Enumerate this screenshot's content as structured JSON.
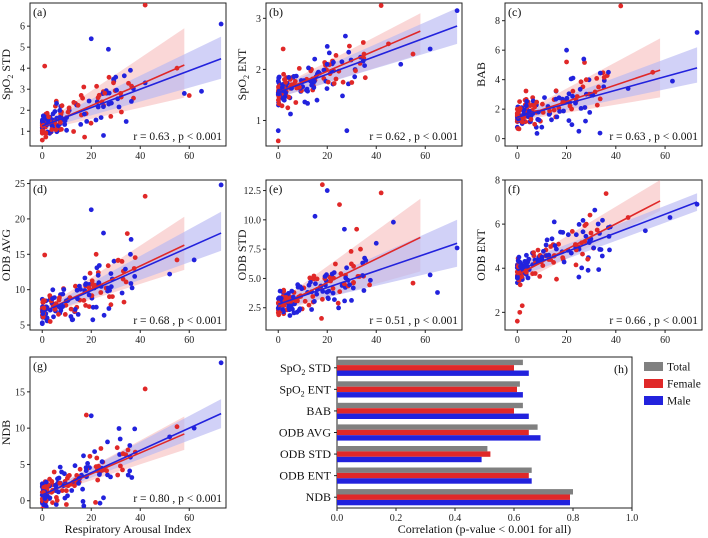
{
  "colors": {
    "male": "#2222dd",
    "female": "#e02828",
    "total": "#808080",
    "male_band": "#b8b8f2",
    "female_band": "#f7c2c2"
  },
  "xlabel_main": "Respiratory Arousal Index",
  "chart_data": [
    {
      "type": "scatter",
      "panel": "(a)",
      "ylabel": "SpO",
      "ylabel_sub": "2",
      "ylabel_rest": " STD",
      "xlim": [
        -5,
        75
      ],
      "ylim": [
        0.3,
        7.1
      ],
      "xticks": [
        0,
        20,
        40,
        60
      ],
      "yticks": [
        1,
        2,
        3,
        4,
        5,
        6
      ],
      "annotation": "r = 0.63 , p < 0.001",
      "fit_female": {
        "x": [
          0,
          58
        ],
        "y": [
          1.2,
          4.15
        ],
        "band_lo": [
          1.05,
          2.6
        ],
        "band_hi": [
          1.35,
          5.9
        ]
      },
      "fit_male": {
        "x": [
          0,
          73
        ],
        "y": [
          1.25,
          4.45
        ],
        "band_lo": [
          1.1,
          3.5
        ],
        "band_hi": [
          1.4,
          5.5
        ]
      },
      "outliers_female": [
        [
          42,
          7.0
        ],
        [
          32,
          2.8
        ],
        [
          1,
          4.1
        ],
        [
          55,
          4.0
        ],
        [
          60,
          2.7
        ]
      ],
      "outliers_male": [
        [
          73,
          6.1
        ],
        [
          20,
          5.4
        ],
        [
          27,
          4.9
        ],
        [
          36,
          3.9
        ],
        [
          42,
          3.3
        ],
        [
          58,
          2.8
        ],
        [
          65,
          2.9
        ],
        [
          25,
          0.8
        ]
      ]
    },
    {
      "type": "scatter",
      "panel": "(b)",
      "ylabel": "SpO",
      "ylabel_sub": "2",
      "ylabel_rest": " ENT",
      "xlim": [
        -5,
        75
      ],
      "ylim": [
        0.5,
        3.3
      ],
      "xticks": [
        0,
        20,
        40,
        60
      ],
      "yticks": [
        1,
        2,
        3
      ],
      "annotation": "r = 0.62 , p < 0.001",
      "fit_female": {
        "x": [
          0,
          58
        ],
        "y": [
          1.55,
          2.75
        ],
        "band_lo": [
          1.45,
          2.3
        ],
        "band_hi": [
          1.65,
          3.1
        ]
      },
      "fit_male": {
        "x": [
          0,
          73
        ],
        "y": [
          1.55,
          2.85
        ],
        "band_lo": [
          1.45,
          2.5
        ],
        "band_hi": [
          1.65,
          3.2
        ]
      },
      "outliers_female": [
        [
          42,
          3.25
        ],
        [
          0,
          0.6
        ],
        [
          2,
          2.4
        ],
        [
          35,
          2.3
        ],
        [
          55,
          2.3
        ],
        [
          45,
          2.5
        ]
      ],
      "outliers_male": [
        [
          73,
          3.15
        ],
        [
          0,
          0.8
        ],
        [
          28,
          0.8
        ],
        [
          62,
          2.4
        ],
        [
          50,
          2.1
        ],
        [
          20,
          2.45
        ]
      ]
    },
    {
      "type": "scatter",
      "panel": "(c)",
      "ylabel": "BAB",
      "ylabel_sub": "",
      "ylabel_rest": "",
      "xlim": [
        -5,
        75
      ],
      "ylim": [
        -0.5,
        9.2
      ],
      "xticks": [
        0,
        20,
        40,
        60
      ],
      "yticks": [
        0,
        2,
        4,
        6,
        8
      ],
      "annotation": "r = 0.63 , p < 0.001",
      "fit_female": {
        "x": [
          0,
          58
        ],
        "y": [
          1.4,
          4.65
        ],
        "band_lo": [
          1.2,
          2.8
        ],
        "band_hi": [
          1.6,
          6.8
        ]
      },
      "fit_male": {
        "x": [
          0,
          73
        ],
        "y": [
          1.45,
          4.8
        ],
        "band_lo": [
          1.25,
          3.8
        ],
        "band_hi": [
          1.65,
          6.2
        ]
      },
      "outliers_female": [
        [
          42,
          9.0
        ],
        [
          20,
          5.2
        ],
        [
          28,
          4.0
        ],
        [
          33,
          3.5
        ],
        [
          55,
          4.5
        ]
      ],
      "outliers_male": [
        [
          73,
          7.2
        ],
        [
          20,
          6.0
        ],
        [
          27,
          5.4
        ],
        [
          37,
          4.5
        ],
        [
          45,
          3.4
        ],
        [
          63,
          3.9
        ],
        [
          25,
          0.5
        ]
      ]
    },
    {
      "type": "scatter",
      "panel": "(d)",
      "ylabel": "ODB AVG",
      "ylabel_sub": "",
      "ylabel_rest": "",
      "xlim": [
        -5,
        75
      ],
      "ylim": [
        4.3,
        25.5
      ],
      "xticks": [
        0,
        20,
        40,
        60
      ],
      "yticks": [
        5,
        10,
        15,
        20,
        25
      ],
      "annotation": "r = 0.68 , p < 0.001",
      "fit_female": {
        "x": [
          0,
          58
        ],
        "y": [
          6.8,
          16.3
        ],
        "band_lo": [
          6.4,
          12.8
        ],
        "band_hi": [
          7.2,
          20.3
        ]
      },
      "fit_male": {
        "x": [
          0,
          73
        ],
        "y": [
          6.8,
          18.0
        ],
        "band_lo": [
          6.4,
          15.5
        ],
        "band_hi": [
          7.2,
          21.0
        ]
      },
      "outliers_female": [
        [
          42,
          23.2
        ],
        [
          1,
          14.9
        ],
        [
          33,
          11.5
        ],
        [
          55,
          14.2
        ],
        [
          22,
          15.0
        ]
      ],
      "outliers_male": [
        [
          73,
          24.8
        ],
        [
          20,
          21.3
        ],
        [
          25,
          18.0
        ],
        [
          36,
          15.0
        ],
        [
          62,
          14.2
        ],
        [
          52,
          12.2
        ]
      ]
    },
    {
      "type": "scatter",
      "panel": "(e)",
      "ylabel": "ODB STD",
      "ylabel_sub": "",
      "ylabel_rest": "",
      "xlim": [
        -5,
        75
      ],
      "ylim": [
        0.6,
        13.4
      ],
      "xticks": [
        0,
        20,
        40,
        60
      ],
      "yticks": [
        2.5,
        5.0,
        7.5,
        10.0,
        12.5
      ],
      "annotation": "r = 0.51 , p < 0.001",
      "fit_female": {
        "x": [
          0,
          58
        ],
        "y": [
          2.6,
          8.5
        ],
        "band_lo": [
          2.2,
          5.6
        ],
        "band_hi": [
          3.0,
          11.8
        ]
      },
      "fit_male": {
        "x": [
          0,
          73
        ],
        "y": [
          2.8,
          8.0
        ],
        "band_lo": [
          2.4,
          6.0
        ],
        "band_hi": [
          3.2,
          10.0
        ]
      },
      "outliers_female": [
        [
          42,
          12.3
        ],
        [
          18,
          13.0
        ],
        [
          32,
          9.2
        ],
        [
          55,
          4.6
        ],
        [
          25,
          11.3
        ]
      ],
      "outliers_male": [
        [
          20,
          12.5
        ],
        [
          15,
          10.3
        ],
        [
          27,
          9.2
        ],
        [
          40,
          8.0
        ],
        [
          62,
          5.3
        ],
        [
          65,
          3.8
        ],
        [
          73,
          7.6
        ],
        [
          47,
          9.8
        ]
      ]
    },
    {
      "type": "scatter",
      "panel": "(f)",
      "ylabel": "ODB ENT",
      "ylabel_sub": "",
      "ylabel_rest": "",
      "xlim": [
        -5,
        75
      ],
      "ylim": [
        1.2,
        8.0
      ],
      "xticks": [
        0,
        20,
        40,
        60
      ],
      "yticks": [
        2,
        4,
        6,
        8
      ],
      "annotation": "r = 0.66 , p < 0.001",
      "fit_female": {
        "x": [
          0,
          58
        ],
        "y": [
          3.7,
          7.05
        ],
        "band_lo": [
          3.3,
          6.6
        ],
        "band_hi": [
          4.1,
          8.0
        ]
      },
      "fit_male": {
        "x": [
          0,
          73
        ],
        "y": [
          3.9,
          7.0
        ],
        "band_lo": [
          3.6,
          6.6
        ],
        "band_hi": [
          4.2,
          7.4
        ]
      },
      "outliers_female": [
        [
          0,
          1.6
        ],
        [
          1,
          2.0
        ],
        [
          2,
          2.3
        ],
        [
          45,
          6.3
        ],
        [
          28,
          6.0
        ]
      ],
      "outliers_male": [
        [
          73,
          6.9
        ],
        [
          25,
          3.6
        ],
        [
          62,
          6.3
        ],
        [
          52,
          5.7
        ],
        [
          15,
          6.1
        ]
      ]
    },
    {
      "type": "scatter",
      "panel": "(g)",
      "ylabel": "NDB",
      "ylabel_sub": "",
      "ylabel_rest": "",
      "xlim": [
        -5,
        75
      ],
      "ylim": [
        -1,
        19.8
      ],
      "xticks": [
        0,
        20,
        40,
        60
      ],
      "yticks": [
        0,
        5,
        10,
        15
      ],
      "annotation": "r = 0.80 , p < 0.001",
      "fit_female": {
        "x": [
          0,
          58
        ],
        "y": [
          0.8,
          9.2
        ],
        "band_lo": [
          0.6,
          7.0
        ],
        "band_hi": [
          1.0,
          11.6
        ]
      },
      "fit_male": {
        "x": [
          0,
          73
        ],
        "y": [
          0.8,
          12.0
        ],
        "band_lo": [
          0.6,
          10.0
        ],
        "band_hi": [
          1.0,
          14.0
        ]
      },
      "outliers_female": [
        [
          42,
          15.4
        ],
        [
          18,
          11.8
        ],
        [
          35,
          7.0
        ],
        [
          55,
          10.2
        ],
        [
          22,
          4.7
        ]
      ],
      "outliers_male": [
        [
          73,
          19.0
        ],
        [
          20,
          11.7
        ],
        [
          25,
          0.4
        ],
        [
          36,
          6.0
        ],
        [
          62,
          10.0
        ],
        [
          52,
          8.8
        ]
      ]
    },
    {
      "type": "bar",
      "panel": "(h)",
      "orientation": "horizontal",
      "categories": [
        "SpO2 STD",
        "SpO2 ENT",
        "BAB",
        "ODB AVG",
        "ODB STD",
        "ODB ENT",
        "NDB"
      ],
      "category_labels": [
        {
          "main": "SpO",
          "sub": "2",
          "rest": " STD"
        },
        {
          "main": "SpO",
          "sub": "2",
          "rest": " ENT"
        },
        {
          "main": "BAB",
          "sub": "",
          "rest": ""
        },
        {
          "main": "ODB AVG",
          "sub": "",
          "rest": ""
        },
        {
          "main": "ODB STD",
          "sub": "",
          "rest": ""
        },
        {
          "main": "ODB ENT",
          "sub": "",
          "rest": ""
        },
        {
          "main": "NDB",
          "sub": "",
          "rest": ""
        }
      ],
      "series": [
        {
          "name": "Total",
          "values": [
            0.63,
            0.62,
            0.63,
            0.68,
            0.51,
            0.66,
            0.8
          ]
        },
        {
          "name": "Female",
          "values": [
            0.6,
            0.61,
            0.6,
            0.65,
            0.52,
            0.65,
            0.79
          ]
        },
        {
          "name": "Male",
          "values": [
            0.65,
            0.63,
            0.65,
            0.69,
            0.49,
            0.66,
            0.79
          ]
        }
      ],
      "xlim": [
        0,
        1.0
      ],
      "xticks": [
        0.0,
        0.2,
        0.4,
        0.6,
        0.8,
        1.0
      ],
      "xtick_labels": [
        "0.0",
        "0.2",
        "0.4",
        "0.6",
        "0.8",
        "1.0"
      ],
      "xlabel": "Correlation (p-value < 0.001 for all)",
      "legend": [
        "Total",
        "Female",
        "Male"
      ],
      "legend_position": "right"
    }
  ]
}
